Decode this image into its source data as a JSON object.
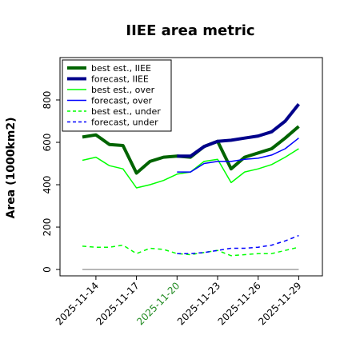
{
  "chart_data": {
    "type": "line",
    "title": "IIEE area metric",
    "xlabel": "",
    "ylabel": "Area (1000km2)",
    "ylim": [
      -30,
      1000
    ],
    "yticks": [
      0,
      200,
      400,
      600,
      800
    ],
    "x_dates": [
      "2025-11-13",
      "2025-11-14",
      "2025-11-15",
      "2025-11-16",
      "2025-11-17",
      "2025-11-18",
      "2025-11-19",
      "2025-11-20",
      "2025-11-21",
      "2025-11-22",
      "2025-11-23",
      "2025-11-24",
      "2025-11-25",
      "2025-11-26",
      "2025-11-27",
      "2025-11-28",
      "2025-11-29"
    ],
    "xticks": [
      "2025-11-14",
      "2025-11-17",
      "2025-11-20",
      "2025-11-23",
      "2025-11-26",
      "2025-11-29"
    ],
    "highlight_tick": "2025-11-20",
    "highlight_color": "#228b22",
    "legend_position": "top-left",
    "grid": false,
    "zero_line": true,
    "series": [
      {
        "name": "best est., IIEE",
        "color": "#006400",
        "style": "solid",
        "width": 4,
        "x": [
          "2025-11-13",
          "2025-11-14",
          "2025-11-15",
          "2025-11-16",
          "2025-11-17",
          "2025-11-18",
          "2025-11-19",
          "2025-11-20",
          "2025-11-21",
          "2025-11-22",
          "2025-11-23",
          "2025-11-24",
          "2025-11-25",
          "2025-11-26",
          "2025-11-27",
          "2025-11-28",
          "2025-11-29"
        ],
        "values": [
          625,
          635,
          590,
          585,
          455,
          510,
          530,
          535,
          530,
          580,
          605,
          475,
          530,
          550,
          570,
          620,
          675
        ]
      },
      {
        "name": "forecast, IIEE",
        "color": "#00008b",
        "style": "solid",
        "width": 4,
        "x": [
          "2025-11-20",
          "2025-11-21",
          "2025-11-22",
          "2025-11-23",
          "2025-11-24",
          "2025-11-25",
          "2025-11-26",
          "2025-11-27",
          "2025-11-28",
          "2025-11-29"
        ],
        "values": [
          535,
          535,
          580,
          605,
          610,
          620,
          630,
          650,
          700,
          780
        ]
      },
      {
        "name": "best est., over",
        "color": "#00ff00",
        "style": "solid",
        "width": 1.5,
        "x": [
          "2025-11-13",
          "2025-11-14",
          "2025-11-15",
          "2025-11-16",
          "2025-11-17",
          "2025-11-18",
          "2025-11-19",
          "2025-11-20",
          "2025-11-21",
          "2025-11-22",
          "2025-11-23",
          "2025-11-24",
          "2025-11-25",
          "2025-11-26",
          "2025-11-27",
          "2025-11-28",
          "2025-11-29"
        ],
        "values": [
          515,
          530,
          490,
          475,
          385,
          400,
          420,
          450,
          460,
          510,
          520,
          410,
          460,
          475,
          495,
          530,
          570
        ]
      },
      {
        "name": "forecast, over",
        "color": "#0000ff",
        "style": "solid",
        "width": 1.5,
        "x": [
          "2025-11-20",
          "2025-11-21",
          "2025-11-22",
          "2025-11-23",
          "2025-11-24",
          "2025-11-25",
          "2025-11-26",
          "2025-11-27",
          "2025-11-28",
          "2025-11-29"
        ],
        "values": [
          460,
          460,
          500,
          510,
          510,
          520,
          525,
          540,
          570,
          620
        ]
      },
      {
        "name": "best est., under",
        "color": "#00ff00",
        "style": "dashed",
        "width": 1.5,
        "x": [
          "2025-11-13",
          "2025-11-14",
          "2025-11-15",
          "2025-11-16",
          "2025-11-17",
          "2025-11-18",
          "2025-11-19",
          "2025-11-20",
          "2025-11-21",
          "2025-11-22",
          "2025-11-23",
          "2025-11-24",
          "2025-11-25",
          "2025-11-26",
          "2025-11-27",
          "2025-11-28",
          "2025-11-29"
        ],
        "values": [
          110,
          105,
          105,
          115,
          75,
          100,
          95,
          75,
          70,
          80,
          90,
          65,
          70,
          75,
          75,
          90,
          105
        ]
      },
      {
        "name": "forecast, under",
        "color": "#0000ff",
        "style": "dashed",
        "width": 1.5,
        "x": [
          "2025-11-20",
          "2025-11-21",
          "2025-11-22",
          "2025-11-23",
          "2025-11-24",
          "2025-11-25",
          "2025-11-26",
          "2025-11-27",
          "2025-11-28",
          "2025-11-29"
        ],
        "values": [
          75,
          75,
          80,
          90,
          100,
          100,
          105,
          115,
          135,
          160
        ]
      }
    ]
  }
}
